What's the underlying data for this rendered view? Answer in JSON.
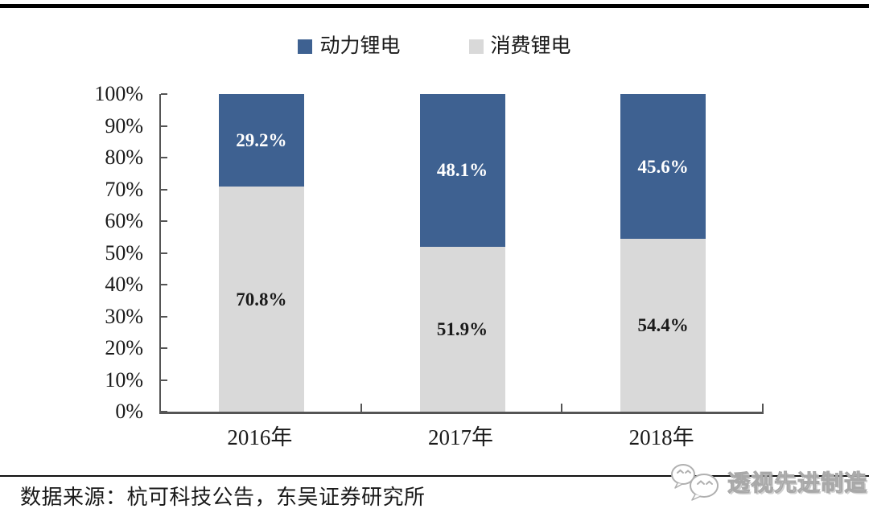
{
  "chart_data": {
    "type": "bar",
    "stacked": true,
    "stacked_100_percent": true,
    "categories": [
      "2016年",
      "2017年",
      "2018年"
    ],
    "series": [
      {
        "name": "动力锂电",
        "color": "#3E6191",
        "values": [
          29.2,
          48.1,
          45.6
        ],
        "labels": [
          "29.2%",
          "48.1%",
          "45.6%"
        ],
        "label_color": "#ffffff"
      },
      {
        "name": "消费锂电",
        "color": "#D9D9D9",
        "values": [
          70.8,
          51.9,
          54.4
        ],
        "labels": [
          "70.8%",
          "51.9%",
          "54.4%"
        ],
        "label_color": "#1a1a1a"
      }
    ],
    "title": "",
    "xlabel": "",
    "ylabel": "",
    "ylim": [
      0,
      100
    ],
    "yticks": [
      "100%",
      "90%",
      "80%",
      "70%",
      "60%",
      "50%",
      "40%",
      "30%",
      "20%",
      "10%",
      "0%"
    ],
    "grid": false,
    "legend_position": "top"
  },
  "legend": {
    "items": [
      {
        "label": "动力锂电",
        "color": "#3E6191"
      },
      {
        "label": "消费锂电",
        "color": "#D9D9D9"
      }
    ]
  },
  "axis": {
    "color": "#555555"
  },
  "footer": {
    "source": "数据来源：杭可科技公告，东吴证券研究所",
    "watermark": "透视先进制造",
    "watermark_icon": "wechat-bubbles-icon"
  }
}
